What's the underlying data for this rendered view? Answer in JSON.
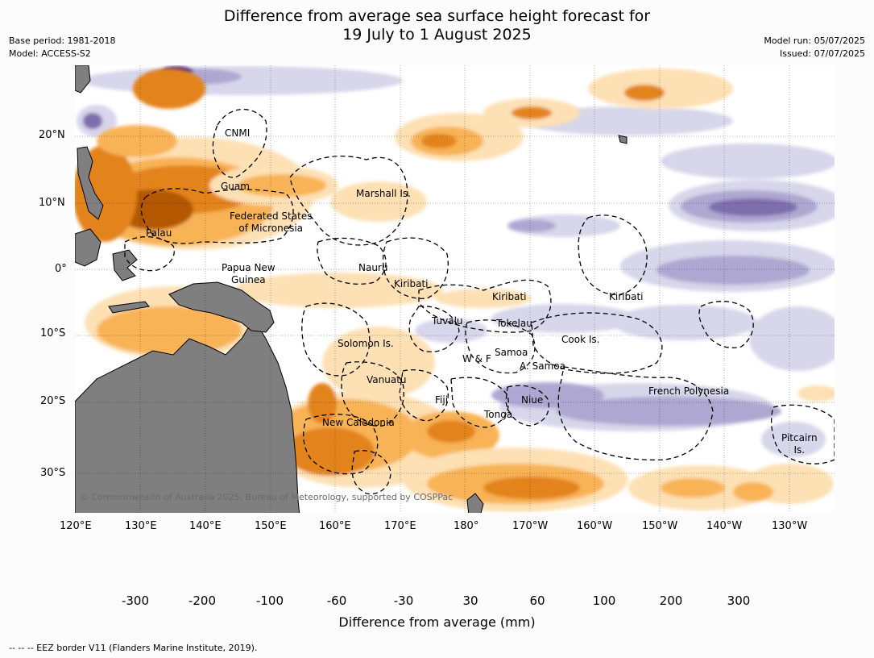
{
  "title": {
    "line1": "Difference from average sea surface height forecast for",
    "line2": "19 July to 1 August 2025"
  },
  "meta_left": {
    "base_period": "Base period: 1981-2018",
    "model": "Model: ACCESS-S2"
  },
  "meta_right": {
    "model_run": "Model run: 05/07/2025",
    "issued": "Issued: 07/07/2025"
  },
  "axes": {
    "lon_labels": [
      "120°E",
      "130°E",
      "140°E",
      "150°E",
      "160°E",
      "170°E",
      "180°",
      "170°W",
      "160°W",
      "150°W",
      "140°W",
      "130°W"
    ],
    "lat_labels": [
      "20°N",
      "10°N",
      "0°",
      "10°S",
      "20°S",
      "30°S"
    ]
  },
  "places": [
    {
      "name": "CNMI"
    },
    {
      "name": "Guam"
    },
    {
      "name": "Marshall Is."
    },
    {
      "name": "Federated States\nof Micronesia"
    },
    {
      "name": "Palau"
    },
    {
      "name": "Papua New\nGuinea"
    },
    {
      "name": "Nauru"
    },
    {
      "name": "Kiribati"
    },
    {
      "name": "Kiribati"
    },
    {
      "name": "Kiribati"
    },
    {
      "name": "Tuvalu"
    },
    {
      "name": "Tokelau"
    },
    {
      "name": "Cook Is."
    },
    {
      "name": "Solomon Is."
    },
    {
      "name": "Samoa"
    },
    {
      "name": "W & F"
    },
    {
      "name": "A. Samoa"
    },
    {
      "name": "Vanuatu"
    },
    {
      "name": "Fiji"
    },
    {
      "name": "Niue"
    },
    {
      "name": "French Polynesia"
    },
    {
      "name": "Tonga"
    },
    {
      "name": "New Caledonia"
    },
    {
      "name": "Pitcairn\nIs."
    }
  ],
  "copyright": "© Commonwealth of Australia 2025, Bureau of Meteorology, supported by COSPPac",
  "colorbar": {
    "title": "Difference from average (mm)",
    "ticks": [
      "-300",
      "-200",
      "-100",
      "-60",
      "-30",
      "30",
      "60",
      "100",
      "200",
      "300"
    ],
    "colors": {
      "below_min": "#2d0a4e",
      "bins": [
        "#5a2585",
        "#7e6eac",
        "#aea7d1",
        "#d7d6ea",
        "#ffffff",
        "#fde0b4",
        "#f8b356",
        "#e3831b",
        "#b35806"
      ],
      "above_max": "#7a3a06"
    }
  },
  "footnote": "--  --  -- EEZ border V11 (Flanders Marine Institute, 2019).",
  "colors": {
    "land": "#7f7f7f",
    "background": "#fcfcfc"
  }
}
